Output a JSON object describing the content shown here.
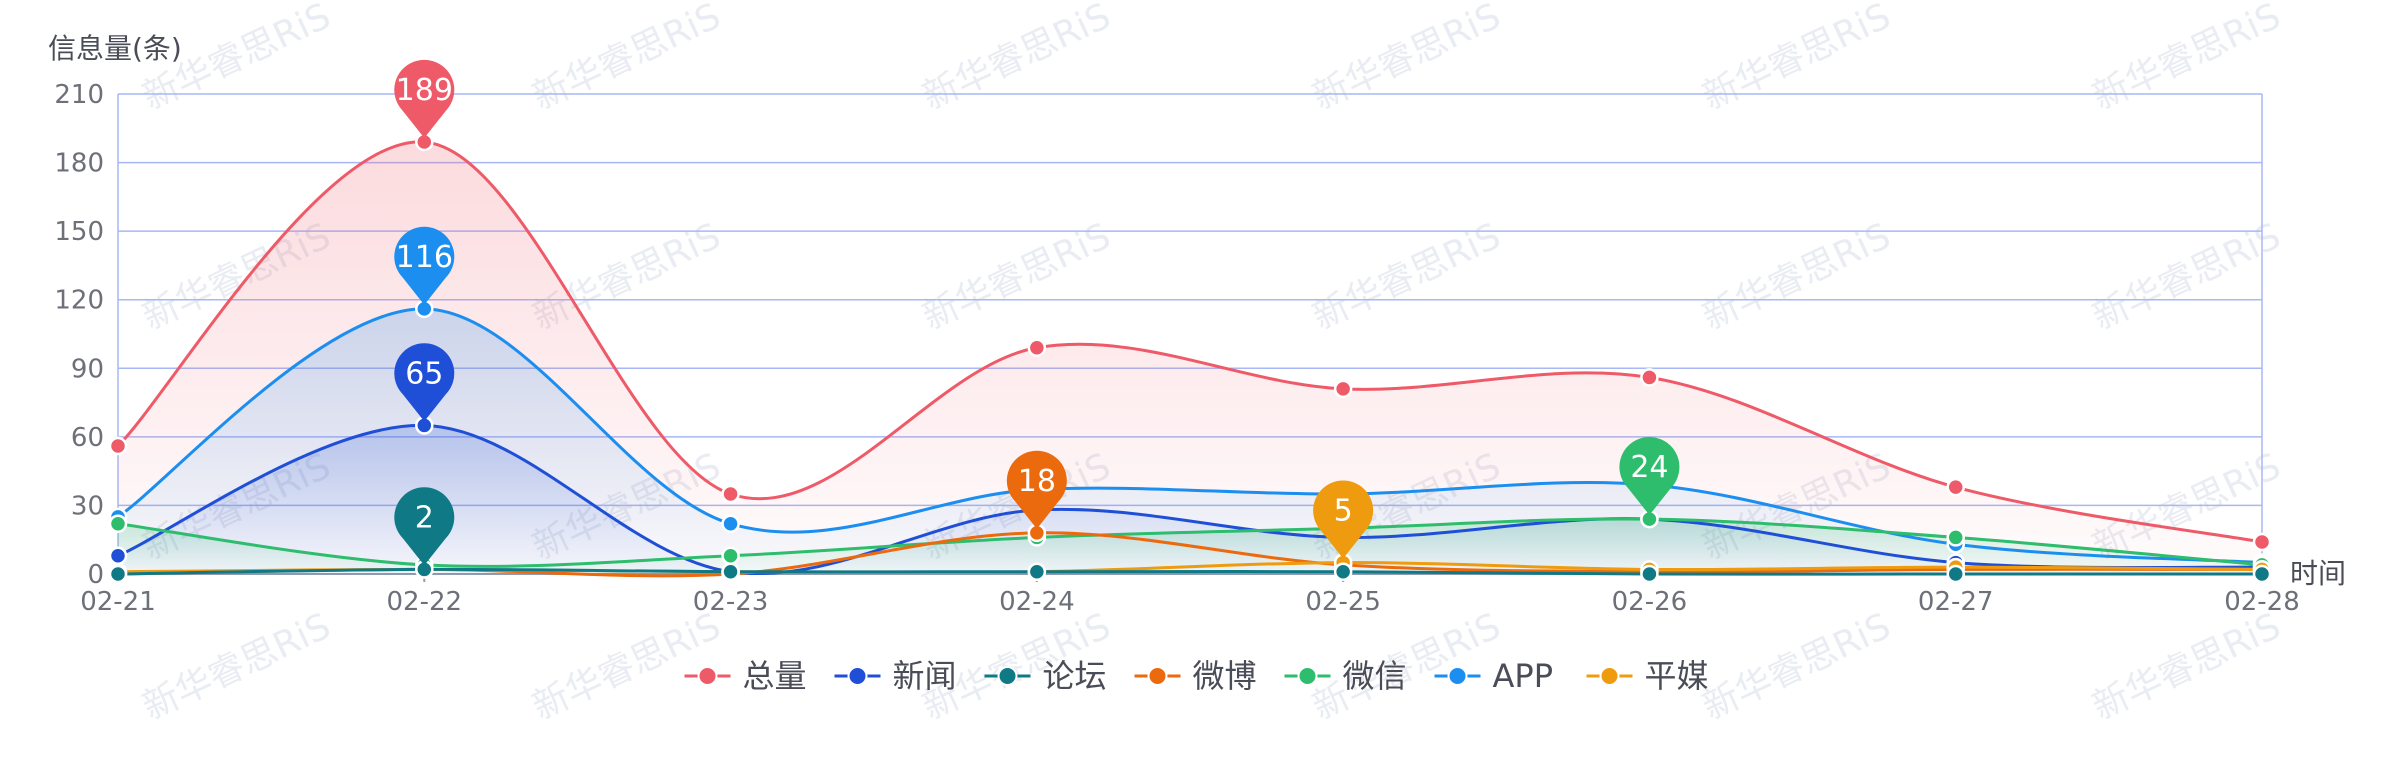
{
  "chart_data": {
    "type": "line",
    "ylabel": "信息量(条)",
    "xlabel": "时间",
    "categories": [
      "02-21",
      "02-22",
      "02-23",
      "02-24",
      "02-25",
      "02-26",
      "02-27",
      "02-28"
    ],
    "ylim": [
      0,
      210
    ],
    "yticks": [
      0,
      30,
      60,
      90,
      120,
      150,
      180,
      210
    ],
    "grid": true,
    "legend_position": "bottom-center",
    "series": [
      {
        "name": "总量",
        "color": "#ee5a68",
        "values": [
          56,
          189,
          35,
          99,
          81,
          86,
          38,
          14
        ],
        "area": true,
        "pin": {
          "index": 1,
          "label": "189"
        }
      },
      {
        "name": "新闻",
        "color": "#1f4fd6",
        "values": [
          8,
          65,
          1,
          28,
          16,
          24,
          5,
          3
        ],
        "area": true,
        "pin": {
          "index": 1,
          "label": "65"
        }
      },
      {
        "name": "论坛",
        "color": "#0f7a85",
        "values": [
          0,
          2,
          1,
          1,
          1,
          0,
          0,
          0
        ],
        "area": false,
        "pin": {
          "index": 1,
          "label": "2"
        }
      },
      {
        "name": "微博",
        "color": "#ec6a0e",
        "values": [
          0,
          2,
          0,
          18,
          4,
          1,
          2,
          2
        ],
        "area": false,
        "pin": {
          "index": 3,
          "label": "18"
        }
      },
      {
        "name": "微信",
        "color": "#2ebd6d",
        "values": [
          22,
          4,
          8,
          16,
          20,
          24,
          16,
          4
        ],
        "area": true,
        "pin": {
          "index": 5,
          "label": "24"
        }
      },
      {
        "name": "APP",
        "color": "#1c8ef0",
        "values": [
          25,
          116,
          22,
          37,
          35,
          39,
          13,
          5
        ],
        "area": true,
        "pin": {
          "index": 1,
          "label": "116"
        }
      },
      {
        "name": "平媒",
        "color": "#ef9b0f",
        "values": [
          1,
          2,
          1,
          1,
          5,
          2,
          3,
          2
        ],
        "area": false,
        "pin": {
          "index": 4,
          "label": "5"
        }
      }
    ]
  },
  "watermark_text": "新华睿思RiS"
}
